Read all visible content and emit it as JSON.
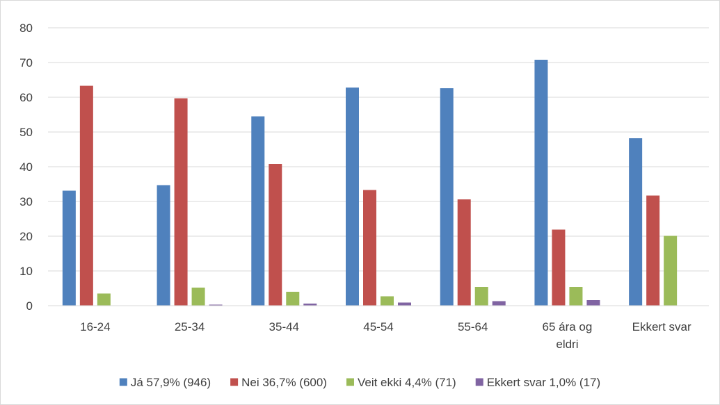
{
  "chart_data": {
    "type": "bar",
    "title": "",
    "xlabel": "",
    "ylabel": "",
    "ylim": [
      0,
      80
    ],
    "yticks": [
      0,
      10,
      20,
      30,
      40,
      50,
      60,
      70,
      80
    ],
    "grid": true,
    "legend_position": "bottom",
    "categories": [
      [
        "16-24"
      ],
      [
        "25-34"
      ],
      [
        "35-44"
      ],
      [
        "45-54"
      ],
      [
        "55-64"
      ],
      [
        "65 ára og",
        "eldri"
      ],
      [
        "Ekkert svar"
      ]
    ],
    "series": [
      {
        "name": "Já 57,9% (946)",
        "color": "#4f81bd",
        "values": [
          33.1,
          34.7,
          54.5,
          62.8,
          62.6,
          70.8,
          48.2
        ]
      },
      {
        "name": "Nei 36,7% (600)",
        "color": "#c0504d",
        "values": [
          63.3,
          59.7,
          40.8,
          33.3,
          30.6,
          21.9,
          31.7
        ]
      },
      {
        "name": "Veit ekki 4,4% (71)",
        "color": "#9bbb59",
        "values": [
          3.5,
          5.2,
          4.0,
          2.7,
          5.4,
          5.4,
          20.1
        ]
      },
      {
        "name": "Ekkert svar 1,0% (17)",
        "color": "#8064a2",
        "values": [
          0,
          0.3,
          0.6,
          0.9,
          1.3,
          1.6,
          0
        ]
      }
    ]
  }
}
